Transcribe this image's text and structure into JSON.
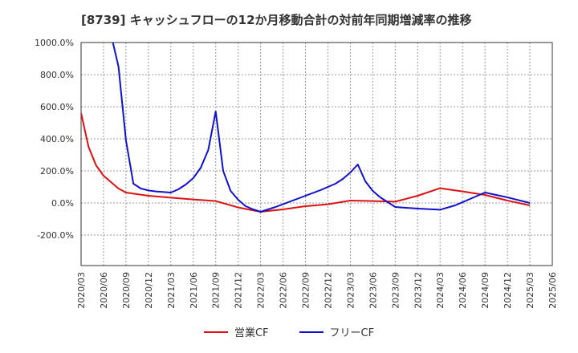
{
  "chart_data": {
    "type": "line",
    "title": "[8739]  キャッシュフローの12か月移動合計の対前年同期増減率の推移",
    "y_tick_labels": [
      "1000.0%",
      "800.0%",
      "600.0%",
      "400.0%",
      "200.0%",
      "0.0%",
      "-200.0%"
    ],
    "x_tick_labels": [
      "2020/03",
      "2020/06",
      "2020/09",
      "2020/12",
      "2021/03",
      "2021/06",
      "2021/09",
      "2021/12",
      "2022/03",
      "2022/06",
      "2022/09",
      "2022/12",
      "2023/03",
      "2023/06",
      "2023/09",
      "2023/12",
      "2024/03",
      "2024/06",
      "2024/09",
      "2024/12",
      "2025/03",
      "2025/06"
    ],
    "ylim": [
      -390,
      1000
    ],
    "xlim_months": [
      0,
      63
    ],
    "grid": true,
    "legend_position": "bottom",
    "series": [
      {
        "name": "営業CF",
        "color": "#dd1111",
        "points": [
          [
            0,
            560
          ],
          [
            1,
            350
          ],
          [
            2,
            235
          ],
          [
            3,
            170
          ],
          [
            4,
            130
          ],
          [
            5,
            90
          ],
          [
            6,
            65
          ],
          [
            9,
            45
          ],
          [
            12,
            33
          ],
          [
            15,
            22
          ],
          [
            18,
            12
          ],
          [
            21,
            -28
          ],
          [
            24,
            -55
          ],
          [
            27,
            -40
          ],
          [
            30,
            -20
          ],
          [
            33,
            -8
          ],
          [
            36,
            15
          ],
          [
            39,
            12
          ],
          [
            42,
            8
          ],
          [
            45,
            45
          ],
          [
            48,
            92
          ],
          [
            51,
            72
          ],
          [
            54,
            50
          ],
          [
            57,
            15
          ],
          [
            60,
            -15
          ]
        ]
      },
      {
        "name": "フリーCF",
        "color": "#1111cc",
        "points": [
          [
            4,
            1050
          ],
          [
            5,
            850
          ],
          [
            6,
            390
          ],
          [
            7,
            120
          ],
          [
            8,
            90
          ],
          [
            9,
            78
          ],
          [
            10,
            72
          ],
          [
            12,
            65
          ],
          [
            13,
            85
          ],
          [
            14,
            115
          ],
          [
            15,
            155
          ],
          [
            16,
            220
          ],
          [
            17,
            330
          ],
          [
            18,
            570
          ],
          [
            19,
            200
          ],
          [
            20,
            75
          ],
          [
            21,
            20
          ],
          [
            22,
            -20
          ],
          [
            23,
            -40
          ],
          [
            24,
            -55
          ],
          [
            26,
            -25
          ],
          [
            28,
            10
          ],
          [
            30,
            45
          ],
          [
            32,
            80
          ],
          [
            34,
            120
          ],
          [
            35,
            150
          ],
          [
            36,
            190
          ],
          [
            37,
            240
          ],
          [
            38,
            135
          ],
          [
            39,
            75
          ],
          [
            40,
            35
          ],
          [
            42,
            -25
          ],
          [
            45,
            -35
          ],
          [
            48,
            -42
          ],
          [
            50,
            -15
          ],
          [
            52,
            25
          ],
          [
            54,
            65
          ],
          [
            57,
            35
          ],
          [
            60,
            0
          ]
        ]
      }
    ]
  }
}
